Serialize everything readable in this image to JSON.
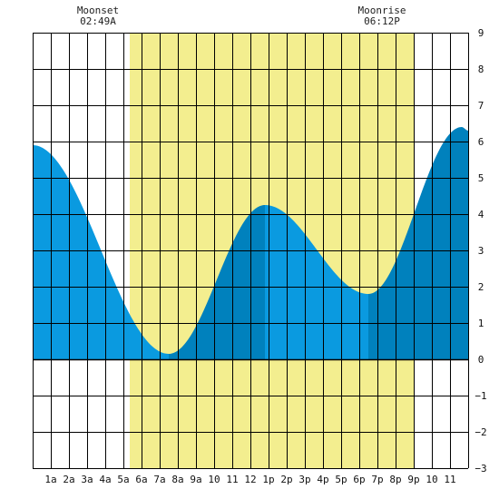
{
  "moonset": {
    "label": "Moonset",
    "time": "02:49A",
    "hour": 2.8167
  },
  "moonrise": {
    "label": "Moonrise",
    "time": "06:12P",
    "hour": 18.2
  },
  "colors": {
    "daylight": "#f3ee8f",
    "tide_light": "#0a9ae0",
    "tide_dark": "#0081bd",
    "grid": "#000000",
    "background": "#ffffff"
  },
  "chart_data": {
    "type": "area",
    "x_tick_labels": [
      "1a",
      "2a",
      "3a",
      "4a",
      "5a",
      "6a",
      "7a",
      "8a",
      "9a",
      "10",
      "11",
      "12",
      "1p",
      "2p",
      "3p",
      "4p",
      "5p",
      "6p",
      "7p",
      "8p",
      "9p",
      "10",
      "11"
    ],
    "y_tick_labels": [
      "9",
      "8",
      "7",
      "6",
      "5",
      "4",
      "3",
      "2",
      "1",
      "0",
      "−1",
      "−2",
      "−3"
    ],
    "xlim": [
      0,
      24
    ],
    "ylim": [
      -3,
      9
    ],
    "grid": true,
    "daylight_hours": [
      5.35,
      21.0
    ],
    "tide_extremes": [
      {
        "hour": 0.0,
        "height": 5.9,
        "type": "start"
      },
      {
        "hour": 7.5,
        "height": 0.15,
        "type": "low"
      },
      {
        "hour": 12.8,
        "height": 4.25,
        "type": "high"
      },
      {
        "hour": 18.5,
        "height": 1.8,
        "type": "low"
      },
      {
        "hour": 23.65,
        "height": 6.4,
        "type": "high"
      },
      {
        "hour": 24.0,
        "height": 6.3,
        "type": "end"
      }
    ],
    "shade_bands": [
      {
        "from": 0.0,
        "to": 7.5,
        "shade": "light"
      },
      {
        "from": 7.5,
        "to": 12.8,
        "shade": "dark"
      },
      {
        "from": 12.8,
        "to": 18.5,
        "shade": "light"
      },
      {
        "from": 18.5,
        "to": 24.0,
        "shade": "dark"
      }
    ]
  }
}
